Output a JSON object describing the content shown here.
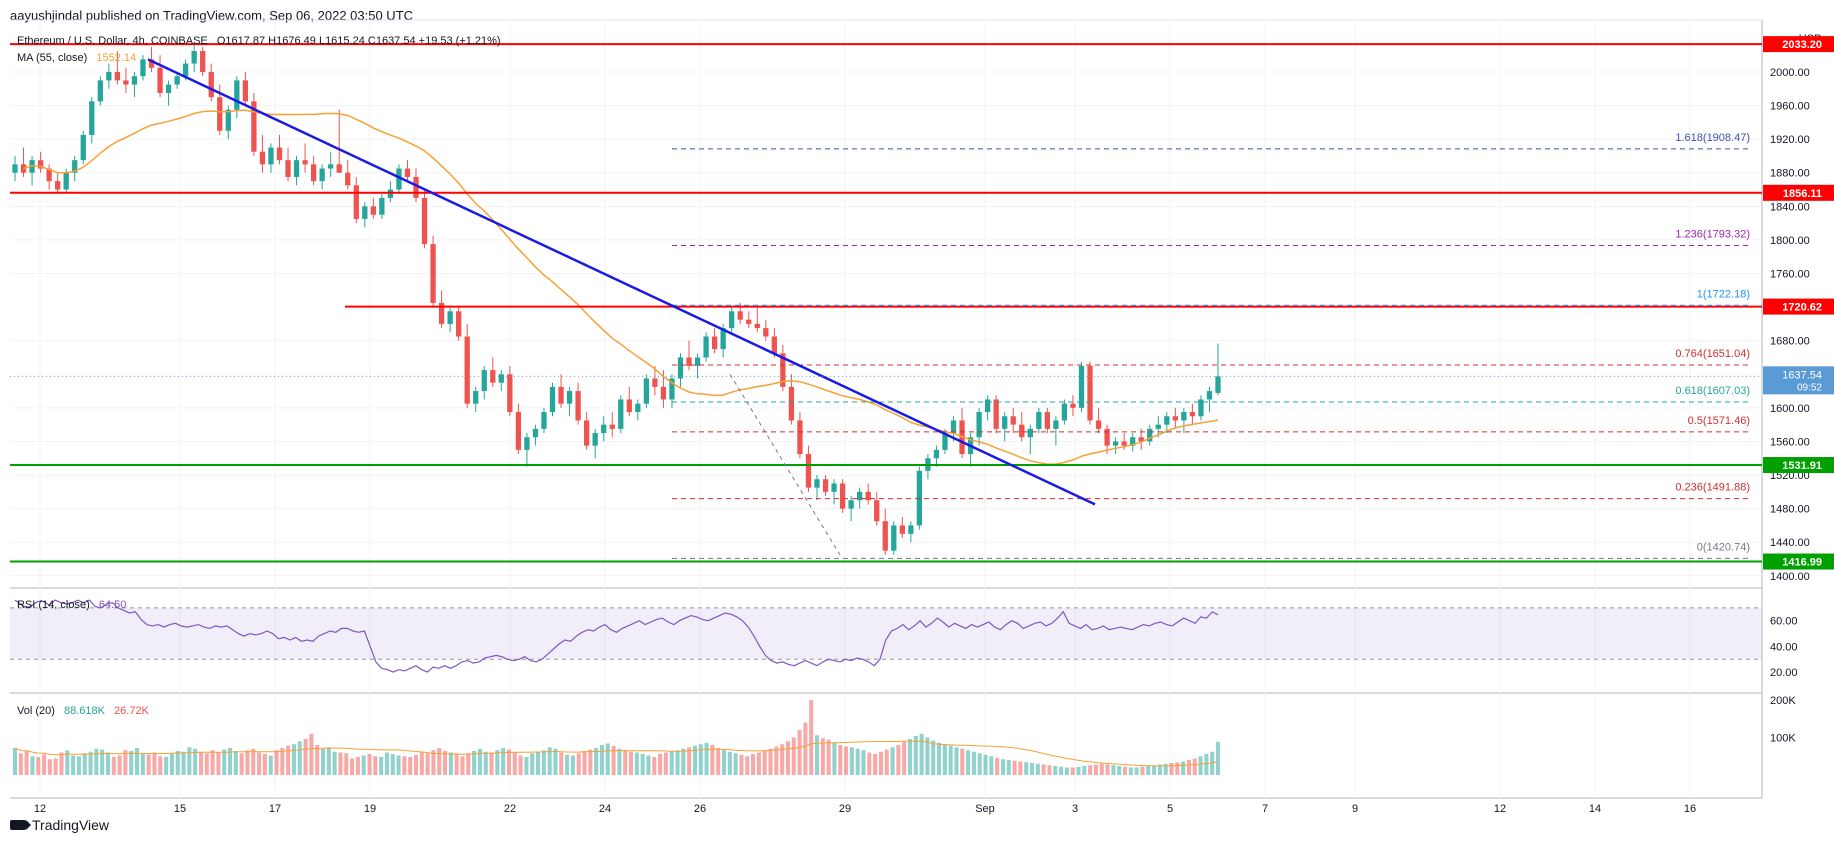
{
  "header": {
    "publisher_line": "aayushjindal published on TradingView.com, Sep 06, 2022 03:50 UTC"
  },
  "legend": {
    "symbol": "Ethereum / U.S. Dollar, 4h, COINBASE",
    "ohlc": "O1617.87  H1676.49  L1615.24  C1637.54  +19.53 (+1.21%)",
    "ma_label": "MA (55, close)",
    "ma_value": "1552.14",
    "rsi_label": "RSI (14, close)",
    "rsi_value": "64.50",
    "vol_label": "Vol (20)",
    "vol_value1": "88.618K",
    "vol_value2": "26.72K"
  },
  "footer": {
    "brand": "TradingView"
  },
  "colors": {
    "up": "#26a69a",
    "down": "#ef5350",
    "resistance": "#ff0000",
    "support": "#00a000",
    "trendline": "#1a1ae6",
    "ma": "#f7a134",
    "rsi": "#7e57c2",
    "fib_top": "#3f51b5",
    "fib_mid": "#9c27b0",
    "fib_1": "#2196f3",
    "fib_0618": "#26a69a",
    "fib_red": "#d32f2f",
    "price_tag": "#5b9bd5"
  },
  "chart_data": {
    "type": "candlestick",
    "currency": "USD",
    "price_axis": {
      "ticks": [
        "2000.00",
        "1960.00",
        "1920.00",
        "1880.00",
        "1840.00",
        "1800.00",
        "1760.00",
        "1680.00",
        "1600.00",
        "1560.00",
        "1520.00",
        "1480.00",
        "1440.00",
        "1400.00"
      ],
      "range": [
        1395,
        2050
      ]
    },
    "x_axis": {
      "labels": [
        "12",
        "15",
        "17",
        "19",
        "22",
        "24",
        "26",
        "29",
        "Sep",
        "3",
        "5",
        "7",
        "9",
        "12",
        "14",
        "16"
      ]
    },
    "horizontal_levels": [
      {
        "name": "resistance-2033",
        "value": 2033.2,
        "label": "2033.20",
        "color": "#ff0000"
      },
      {
        "name": "resistance-1856",
        "value": 1856.11,
        "label": "1856.11",
        "color": "#ff0000"
      },
      {
        "name": "resistance-1720",
        "value": 1720.62,
        "label": "1720.62",
        "color": "#ff0000"
      },
      {
        "name": "support-1531",
        "value": 1531.91,
        "label": "1531.91",
        "color": "#00a000"
      },
      {
        "name": "support-1416",
        "value": 1416.99,
        "label": "1416.99",
        "color": "#00a000"
      }
    ],
    "fib_levels": [
      {
        "ratio": "1.618",
        "value": 1908.47,
        "label": "1.618(1908.47)",
        "color": "#3f51b5"
      },
      {
        "ratio": "1.236",
        "value": 1793.32,
        "label": "1.236(1793.32)",
        "color": "#9c27b0"
      },
      {
        "ratio": "1",
        "value": 1722.18,
        "label": "1(1722.18)",
        "color": "#2196f3"
      },
      {
        "ratio": "0.764",
        "value": 1651.04,
        "label": "0.764(1651.04)",
        "color": "#d32f2f"
      },
      {
        "ratio": "0.618",
        "value": 1607.03,
        "label": "0.618(1607.03)",
        "color": "#26a69a"
      },
      {
        "ratio": "0.5",
        "value": 1571.46,
        "label": "0.5(1571.46)",
        "color": "#d32f2f"
      },
      {
        "ratio": "0.236",
        "value": 1491.88,
        "label": "0.236(1491.88)",
        "color": "#d32f2f"
      },
      {
        "ratio": "0",
        "value": 1420.74,
        "label": "0(1420.74)",
        "color": "#787b86"
      }
    ],
    "last_price": {
      "label": "1637.54",
      "countdown": "09:52",
      "value": 1637.54
    },
    "trendline": {
      "from": {
        "x": "Aug 14",
        "y": 2015
      },
      "to": {
        "x": "Sep 3",
        "y": 1485
      }
    },
    "rsi_axis": {
      "ticks": [
        "60.00",
        "40.00",
        "20.00"
      ],
      "range": [
        10,
        80
      ],
      "bands": [
        70,
        30
      ]
    },
    "rsi_points": [
      76,
      73,
      70,
      72,
      75,
      75,
      72,
      76,
      74,
      73,
      74,
      76,
      74,
      76,
      71,
      70,
      73,
      74,
      70,
      68,
      66,
      67,
      61,
      57,
      56,
      57,
      55,
      57,
      58,
      56,
      55,
      56,
      57,
      55,
      54,
      56,
      55,
      56,
      53,
      50,
      48,
      50,
      49,
      50,
      52,
      50,
      46,
      47,
      45,
      47,
      44,
      45,
      44,
      48,
      50,
      52,
      51,
      54,
      54,
      52,
      51,
      52,
      40,
      28,
      23,
      22,
      20,
      22,
      21,
      23,
      25,
      22,
      20,
      24,
      23,
      25,
      23,
      25,
      28,
      29,
      27,
      28,
      31,
      32,
      33,
      32,
      30,
      29,
      30,
      32,
      29,
      28,
      30,
      34,
      38,
      42,
      45,
      44,
      48,
      51,
      53,
      52,
      55,
      57,
      53,
      51,
      54,
      56,
      58,
      60,
      57,
      59,
      61,
      62,
      59,
      57,
      60,
      62,
      64,
      63,
      61,
      60,
      62,
      64,
      66,
      65,
      63,
      60,
      55,
      48,
      40,
      33,
      29,
      27,
      28,
      26,
      25,
      27,
      29,
      27,
      25,
      28,
      30,
      29,
      28,
      30,
      29,
      31,
      30,
      28,
      25,
      30,
      45,
      52,
      54,
      57,
      53,
      56,
      60,
      55,
      58,
      62,
      59,
      55,
      58,
      56,
      54,
      57,
      55,
      57,
      59,
      55,
      53,
      57,
      60,
      58,
      54,
      56,
      58,
      59,
      56,
      58,
      62,
      67,
      58,
      56,
      54,
      57,
      53,
      54,
      56,
      53,
      54,
      55,
      54,
      53,
      55,
      57,
      56,
      58,
      59,
      57,
      56,
      59,
      62,
      60,
      58,
      63,
      62,
      67,
      64.5
    ],
    "volume_axis": {
      "ticks": [
        "200K",
        "100K"
      ],
      "range": [
        0,
        200
      ]
    },
    "volume_points": [
      72,
      58,
      64,
      50,
      48,
      55,
      42,
      44,
      60,
      66,
      52,
      50,
      58,
      62,
      70,
      68,
      60,
      48,
      52,
      66,
      64,
      72,
      56,
      54,
      60,
      50,
      48,
      58,
      64,
      62,
      74,
      70,
      62,
      58,
      66,
      60,
      68,
      72,
      64,
      58,
      66,
      70,
      60,
      56,
      52,
      66,
      72,
      78,
      82,
      90,
      96,
      110,
      80,
      70,
      74,
      62,
      60,
      58,
      44,
      48,
      52,
      56,
      50,
      48,
      60,
      56,
      52,
      50,
      48,
      54,
      62,
      58,
      66,
      72,
      64,
      60,
      56,
      50,
      58,
      64,
      70,
      62,
      60,
      66,
      72,
      68,
      60,
      52,
      48,
      58,
      62,
      66,
      74,
      70,
      60,
      54,
      52,
      58,
      64,
      68,
      72,
      80,
      84,
      78,
      70,
      66,
      62,
      60,
      56,
      52,
      48,
      56,
      60,
      64,
      66,
      70,
      74,
      78,
      82,
      86,
      80,
      72,
      68,
      62,
      58,
      54,
      50,
      56,
      60,
      66,
      70,
      76,
      82,
      90,
      100,
      120,
      140,
      200,
      106,
      98,
      94,
      86,
      80,
      76,
      74,
      70,
      66,
      60,
      56,
      62,
      68,
      74,
      80,
      88,
      96,
      104,
      110,
      100,
      92,
      86,
      82,
      78,
      74,
      70,
      66,
      62,
      58,
      54,
      50,
      46,
      42,
      40,
      38,
      36,
      34,
      32,
      30,
      28,
      26,
      24,
      22,
      20,
      20,
      22,
      24,
      26,
      28,
      30,
      28,
      26,
      24,
      22,
      20,
      20,
      22,
      24,
      26,
      28,
      30,
      32,
      34,
      36,
      40,
      44,
      50,
      56,
      62,
      88.6
    ],
    "candles_ohlc": [
      [
        1880,
        1900,
        1870,
        1890
      ],
      [
        1890,
        1910,
        1875,
        1880
      ],
      [
        1880,
        1900,
        1865,
        1895
      ],
      [
        1895,
        1905,
        1880,
        1885
      ],
      [
        1885,
        1890,
        1860,
        1870
      ],
      [
        1870,
        1880,
        1855,
        1860
      ],
      [
        1860,
        1885,
        1855,
        1880
      ],
      [
        1880,
        1900,
        1870,
        1895
      ],
      [
        1895,
        1930,
        1890,
        1925
      ],
      [
        1925,
        1970,
        1915,
        1965
      ],
      [
        1965,
        1995,
        1960,
        1990
      ],
      [
        1990,
        2010,
        1980,
        2000
      ],
      [
        2000,
        2025,
        1985,
        1990
      ],
      [
        1990,
        2005,
        1975,
        1985
      ],
      [
        1985,
        2000,
        1970,
        1995
      ],
      [
        1995,
        2020,
        1990,
        2015
      ],
      [
        2015,
        2030,
        2000,
        2005
      ],
      [
        2005,
        2020,
        1970,
        1975
      ],
      [
        1975,
        1990,
        1960,
        1985
      ],
      [
        1985,
        2000,
        1980,
        1995
      ],
      [
        1995,
        2015,
        1990,
        2010
      ],
      [
        2010,
        2033,
        2000,
        2025
      ],
      [
        2025,
        2030,
        1995,
        2000
      ],
      [
        2000,
        2010,
        1965,
        1970
      ],
      [
        1970,
        1985,
        1925,
        1930
      ],
      [
        1930,
        1960,
        1920,
        1955
      ],
      [
        1955,
        1995,
        1945,
        1990
      ],
      [
        1990,
        2000,
        1960,
        1965
      ],
      [
        1965,
        1975,
        1900,
        1905
      ],
      [
        1905,
        1925,
        1880,
        1890
      ],
      [
        1890,
        1915,
        1880,
        1910
      ],
      [
        1910,
        1925,
        1890,
        1895
      ],
      [
        1895,
        1910,
        1870,
        1875
      ],
      [
        1875,
        1900,
        1865,
        1895
      ],
      [
        1895,
        1915,
        1880,
        1890
      ],
      [
        1890,
        1900,
        1865,
        1870
      ],
      [
        1870,
        1890,
        1860,
        1885
      ],
      [
        1885,
        1905,
        1875,
        1890
      ],
      [
        1890,
        1955,
        1880,
        1880
      ],
      [
        1880,
        1895,
        1860,
        1865
      ],
      [
        1865,
        1875,
        1820,
        1825
      ],
      [
        1825,
        1845,
        1815,
        1840
      ],
      [
        1840,
        1850,
        1825,
        1830
      ],
      [
        1830,
        1855,
        1825,
        1850
      ],
      [
        1850,
        1870,
        1845,
        1860
      ],
      [
        1860,
        1890,
        1855,
        1885
      ],
      [
        1885,
        1895,
        1870,
        1875
      ],
      [
        1875,
        1885,
        1845,
        1850
      ],
      [
        1850,
        1860,
        1790,
        1795
      ],
      [
        1795,
        1805,
        1720,
        1725
      ],
      [
        1725,
        1740,
        1695,
        1700
      ],
      [
        1700,
        1720,
        1690,
        1715
      ],
      [
        1715,
        1720,
        1680,
        1685
      ],
      [
        1685,
        1700,
        1600,
        1605
      ],
      [
        1605,
        1625,
        1595,
        1620
      ],
      [
        1620,
        1650,
        1610,
        1645
      ],
      [
        1645,
        1660,
        1625,
        1630
      ],
      [
        1630,
        1645,
        1620,
        1640
      ],
      [
        1640,
        1650,
        1590,
        1595
      ],
      [
        1595,
        1605,
        1545,
        1550
      ],
      [
        1550,
        1570,
        1530,
        1565
      ],
      [
        1565,
        1580,
        1555,
        1575
      ],
      [
        1575,
        1600,
        1570,
        1595
      ],
      [
        1595,
        1630,
        1590,
        1625
      ],
      [
        1625,
        1640,
        1600,
        1605
      ],
      [
        1605,
        1625,
        1590,
        1620
      ],
      [
        1620,
        1630,
        1580,
        1585
      ],
      [
        1585,
        1595,
        1550,
        1555
      ],
      [
        1555,
        1575,
        1540,
        1570
      ],
      [
        1570,
        1590,
        1560,
        1580
      ],
      [
        1580,
        1595,
        1565,
        1575
      ],
      [
        1575,
        1615,
        1570,
        1610
      ],
      [
        1610,
        1625,
        1590,
        1595
      ],
      [
        1595,
        1610,
        1585,
        1605
      ],
      [
        1605,
        1640,
        1600,
        1635
      ],
      [
        1635,
        1650,
        1615,
        1625
      ],
      [
        1625,
        1645,
        1600,
        1610
      ],
      [
        1610,
        1640,
        1600,
        1635
      ],
      [
        1635,
        1665,
        1625,
        1660
      ],
      [
        1660,
        1680,
        1645,
        1650
      ],
      [
        1650,
        1665,
        1635,
        1660
      ],
      [
        1660,
        1690,
        1655,
        1685
      ],
      [
        1685,
        1695,
        1665,
        1670
      ],
      [
        1670,
        1700,
        1660,
        1695
      ],
      [
        1695,
        1720,
        1690,
        1715
      ],
      [
        1715,
        1725,
        1700,
        1705
      ],
      [
        1705,
        1715,
        1695,
        1700
      ],
      [
        1700,
        1720,
        1690,
        1695
      ],
      [
        1695,
        1705,
        1680,
        1685
      ],
      [
        1685,
        1695,
        1660,
        1665
      ],
      [
        1665,
        1675,
        1620,
        1625
      ],
      [
        1625,
        1640,
        1580,
        1585
      ],
      [
        1585,
        1595,
        1540,
        1545
      ],
      [
        1545,
        1555,
        1500,
        1505
      ],
      [
        1505,
        1520,
        1490,
        1515
      ],
      [
        1515,
        1520,
        1495,
        1500
      ],
      [
        1500,
        1515,
        1485,
        1510
      ],
      [
        1510,
        1515,
        1475,
        1480
      ],
      [
        1480,
        1495,
        1465,
        1490
      ],
      [
        1490,
        1505,
        1480,
        1500
      ],
      [
        1500,
        1510,
        1485,
        1490
      ],
      [
        1490,
        1500,
        1460,
        1465
      ],
      [
        1465,
        1480,
        1425,
        1430
      ],
      [
        1430,
        1465,
        1425,
        1460
      ],
      [
        1460,
        1470,
        1445,
        1450
      ],
      [
        1450,
        1465,
        1440,
        1460
      ],
      [
        1460,
        1530,
        1455,
        1525
      ],
      [
        1525,
        1545,
        1515,
        1540
      ],
      [
        1540,
        1555,
        1530,
        1550
      ],
      [
        1550,
        1575,
        1545,
        1570
      ],
      [
        1570,
        1590,
        1560,
        1585
      ],
      [
        1585,
        1600,
        1540,
        1545
      ],
      [
        1545,
        1570,
        1530,
        1565
      ],
      [
        1565,
        1600,
        1555,
        1595
      ],
      [
        1595,
        1615,
        1585,
        1610
      ],
      [
        1610,
        1615,
        1570,
        1575
      ],
      [
        1575,
        1595,
        1560,
        1590
      ],
      [
        1590,
        1600,
        1570,
        1580
      ],
      [
        1580,
        1595,
        1560,
        1565
      ],
      [
        1565,
        1580,
        1545,
        1575
      ],
      [
        1575,
        1600,
        1570,
        1595
      ],
      [
        1595,
        1600,
        1570,
        1575
      ],
      [
        1575,
        1590,
        1555,
        1585
      ],
      [
        1585,
        1610,
        1580,
        1605
      ],
      [
        1605,
        1615,
        1590,
        1600
      ],
      [
        1600,
        1655,
        1595,
        1650
      ],
      [
        1650,
        1655,
        1580,
        1585
      ],
      [
        1585,
        1600,
        1570,
        1575
      ],
      [
        1575,
        1580,
        1545,
        1555
      ],
      [
        1555,
        1565,
        1545,
        1560
      ],
      [
        1560,
        1570,
        1550,
        1555
      ],
      [
        1555,
        1570,
        1548,
        1565
      ],
      [
        1565,
        1575,
        1550,
        1560
      ],
      [
        1560,
        1580,
        1555,
        1575
      ],
      [
        1575,
        1590,
        1565,
        1580
      ],
      [
        1580,
        1595,
        1570,
        1590
      ],
      [
        1590,
        1600,
        1575,
        1585
      ],
      [
        1585,
        1600,
        1570,
        1595
      ],
      [
        1595,
        1605,
        1580,
        1590
      ],
      [
        1590,
        1615,
        1585,
        1610
      ],
      [
        1610,
        1625,
        1595,
        1620
      ],
      [
        1617.87,
        1676.49,
        1615.24,
        1637.54
      ]
    ]
  }
}
